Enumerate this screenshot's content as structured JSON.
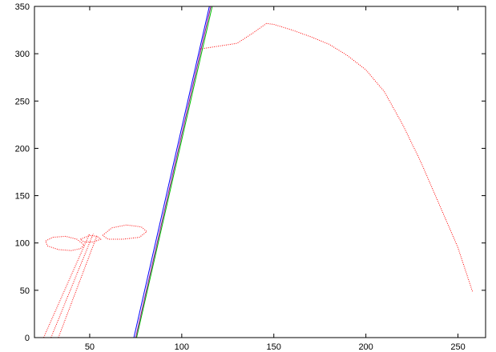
{
  "chart_data": {
    "type": "line",
    "title": "",
    "xlabel": "",
    "ylabel": "",
    "xlim": [
      20,
      265
    ],
    "ylim": [
      0,
      350
    ],
    "xticks": [
      50,
      100,
      150,
      200,
      250
    ],
    "yticks": [
      0,
      50,
      100,
      150,
      200,
      250,
      300,
      350
    ],
    "grid": false,
    "legend": "none",
    "series": [
      {
        "color": "#ff0000",
        "style": "dotted",
        "segments": [
          [
            [
              25,
              0
            ],
            [
              50,
              110
            ]
          ],
          [
            [
              29,
              0
            ],
            [
              52,
              110
            ]
          ],
          [
            [
              33,
              0
            ],
            [
              54,
              108
            ]
          ],
          [
            [
              27,
              97
            ],
            [
              33,
              93
            ],
            [
              40,
              92
            ],
            [
              45,
              94
            ],
            [
              47,
              98
            ],
            [
              43,
              104
            ],
            [
              37,
              107
            ],
            [
              30,
              106
            ],
            [
              26,
              102
            ],
            [
              27,
              97
            ]
          ],
          [
            [
              45,
              104
            ],
            [
              50,
              108
            ],
            [
              54,
              107
            ],
            [
              56,
              104
            ],
            [
              52,
              101
            ],
            [
              47,
              101
            ],
            [
              45,
              104
            ]
          ],
          [
            [
              57,
              108
            ],
            [
              62,
              116
            ],
            [
              70,
              119
            ],
            [
              78,
              117
            ],
            [
              81,
              112
            ],
            [
              77,
              106
            ],
            [
              68,
              104
            ],
            [
              60,
              104
            ],
            [
              57,
              108
            ]
          ],
          [
            [
              110,
              305
            ],
            [
              120,
              308
            ],
            [
              130,
              311
            ],
            [
              138,
              321
            ],
            [
              146,
              332
            ],
            [
              150,
              331
            ],
            [
              160,
              325
            ],
            [
              170,
              318
            ],
            [
              180,
              310
            ],
            [
              190,
              298
            ],
            [
              200,
              283
            ],
            [
              210,
              260
            ],
            [
              220,
              225
            ],
            [
              230,
              185
            ],
            [
              240,
              140
            ],
            [
              250,
              95
            ],
            [
              258,
              48
            ]
          ]
        ]
      },
      {
        "color": "#0000ff",
        "style": "solid",
        "segments": [
          [
            [
              74,
              0
            ],
            [
              115,
              350
            ]
          ]
        ]
      },
      {
        "color": "#00c000",
        "style": "solid",
        "segments": [
          [
            [
              75.5,
              0
            ],
            [
              116.5,
              350
            ]
          ]
        ]
      },
      {
        "color": "#8b008b",
        "style": "solid",
        "segments": [
          [
            [
              75,
              0
            ],
            [
              115.8,
              350
            ]
          ]
        ]
      }
    ]
  }
}
